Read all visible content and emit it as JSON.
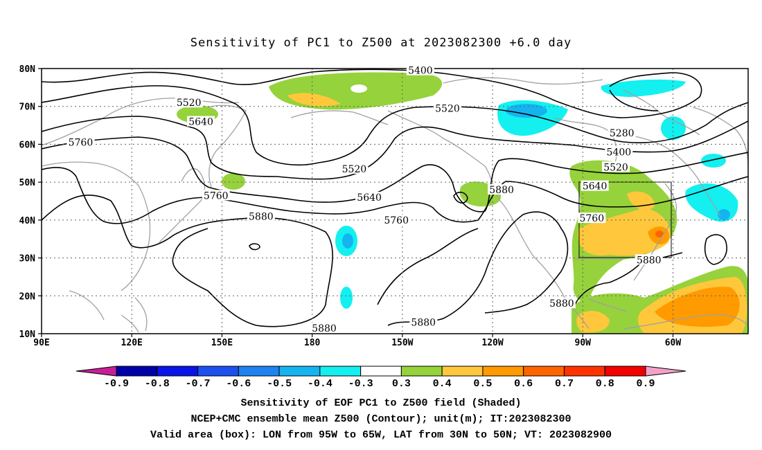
{
  "title": "Sensitivity of PC1 to Z500 at 2023082300 +6.0 day",
  "axes": {
    "lat_labels": [
      "80N",
      "70N",
      "60N",
      "50N",
      "40N",
      "30N",
      "20N",
      "10N"
    ],
    "lat_values": [
      80,
      70,
      60,
      50,
      40,
      30,
      20,
      10
    ],
    "lon_labels": [
      "90E",
      "120E",
      "150E",
      "180",
      "150W",
      "120W",
      "90W",
      "60W"
    ],
    "lon_values": [
      90,
      120,
      150,
      180,
      210,
      240,
      270,
      300
    ],
    "lon_range": [
      90,
      325
    ],
    "lat_range": [
      10,
      80
    ]
  },
  "colorbar": {
    "labels": [
      "-0.9",
      "-0.8",
      "-0.7",
      "-0.6",
      "-0.5",
      "-0.4",
      "-0.3",
      "0.3",
      "0.4",
      "0.5",
      "0.6",
      "0.7",
      "0.8",
      "0.9"
    ],
    "colors": [
      "#0000a8",
      "#0a14e6",
      "#1e50f0",
      "#1e82f0",
      "#14b4f0",
      "#14f0f0",
      "#ffffff",
      "#96d23c",
      "#ffc83c",
      "#ff9a00",
      "#ff6400",
      "#ff3200",
      "#f00000"
    ],
    "low_end_color": "#c81e96",
    "high_end_color": "#f5a0c8"
  },
  "contour_labels": [
    {
      "text": "5400",
      "lon": 216,
      "lat": 79.5
    },
    {
      "text": "5520",
      "lon": 139,
      "lat": 71
    },
    {
      "text": "5520",
      "lon": 225,
      "lat": 69.5
    },
    {
      "text": "5640",
      "lon": 143,
      "lat": 66
    },
    {
      "text": "5760",
      "lon": 103,
      "lat": 60.5
    },
    {
      "text": "5520",
      "lon": 194,
      "lat": 53.5
    },
    {
      "text": "5760",
      "lon": 148,
      "lat": 46.5
    },
    {
      "text": "5640",
      "lon": 199,
      "lat": 46
    },
    {
      "text": "5880",
      "lon": 163,
      "lat": 41
    },
    {
      "text": "5760",
      "lon": 208,
      "lat": 40
    },
    {
      "text": "5880",
      "lon": 243,
      "lat": 48
    },
    {
      "text": "5280",
      "lon": 283,
      "lat": 63
    },
    {
      "text": "5400",
      "lon": 282,
      "lat": 58
    },
    {
      "text": "5520",
      "lon": 281,
      "lat": 54
    },
    {
      "text": "5640",
      "lon": 274,
      "lat": 49
    },
    {
      "text": "5760",
      "lon": 273,
      "lat": 40.5
    },
    {
      "text": "5880",
      "lon": 292,
      "lat": 29.5
    },
    {
      "text": "5880",
      "lon": 263,
      "lat": 18
    },
    {
      "text": "5880",
      "lon": 217,
      "lat": 13
    },
    {
      "text": "5880",
      "lon": 184,
      "lat": 11.5
    }
  ],
  "valid_box": {
    "lon_min": 265,
    "lon_max": 295,
    "lat_min": 30,
    "lat_max": 50
  },
  "captions": [
    "Sensitivity of EOF PC1 to Z500 field (Shaded)",
    "NCEP+CMC ensemble mean Z500 (Contour); unit(m); IT:2023082300",
    "Valid area (box): LON from 95W to 65W, LAT from 30N to 50N; VT: 2023082900"
  ]
}
